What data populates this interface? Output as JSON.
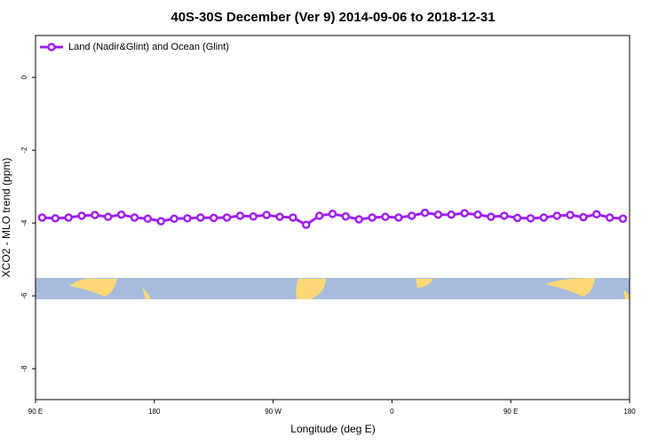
{
  "chart_data": {
    "type": "line",
    "title": "40S-30S December (Ver 9)   2014-09-06 to 2018-12-31",
    "x_label": "Longitude (deg E)",
    "y_label": "XCO2 - MLO trend (ppm)",
    "xlim": [
      90,
      540
    ],
    "xticks": [
      {
        "value": 90,
        "label": "90 E"
      },
      {
        "value": 180,
        "label": "180"
      },
      {
        "value": 270,
        "label": "90 W"
      },
      {
        "value": 360,
        "label": "0"
      },
      {
        "value": 450,
        "label": "90 E"
      },
      {
        "value": 540,
        "label": "180"
      }
    ],
    "ylim": [
      -8.85,
      1.15
    ],
    "yticks": [
      0,
      -2,
      -4,
      -6,
      -8
    ],
    "legend": "upper left",
    "x": [
      95,
      105,
      115,
      125,
      135,
      145,
      155,
      165,
      175,
      185,
      195,
      205,
      215,
      225,
      235,
      245,
      255,
      265,
      275,
      285,
      295,
      305,
      315,
      325,
      335,
      345,
      355,
      365,
      375,
      385,
      395,
      405,
      415,
      425,
      435,
      445,
      455,
      465,
      475,
      485,
      495,
      505,
      515,
      525,
      535
    ],
    "series": [
      {
        "name": "Land (Nadir&Glint) and Ocean (Glint)",
        "color": "#a020f0",
        "values": [
          -3.85,
          -3.87,
          -3.85,
          -3.8,
          -3.78,
          -3.83,
          -3.77,
          -3.85,
          -3.88,
          -3.95,
          -3.88,
          -3.87,
          -3.85,
          -3.86,
          -3.85,
          -3.8,
          -3.82,
          -3.78,
          -3.83,
          -3.85,
          -4.05,
          -3.8,
          -3.75,
          -3.82,
          -3.9,
          -3.85,
          -3.83,
          -3.85,
          -3.8,
          -3.72,
          -3.77,
          -3.77,
          -3.73,
          -3.77,
          -3.83,
          -3.8,
          -3.86,
          -3.87,
          -3.85,
          -3.8,
          -3.78,
          -3.84,
          -3.76,
          -3.85,
          -3.88
        ]
      }
    ]
  }
}
